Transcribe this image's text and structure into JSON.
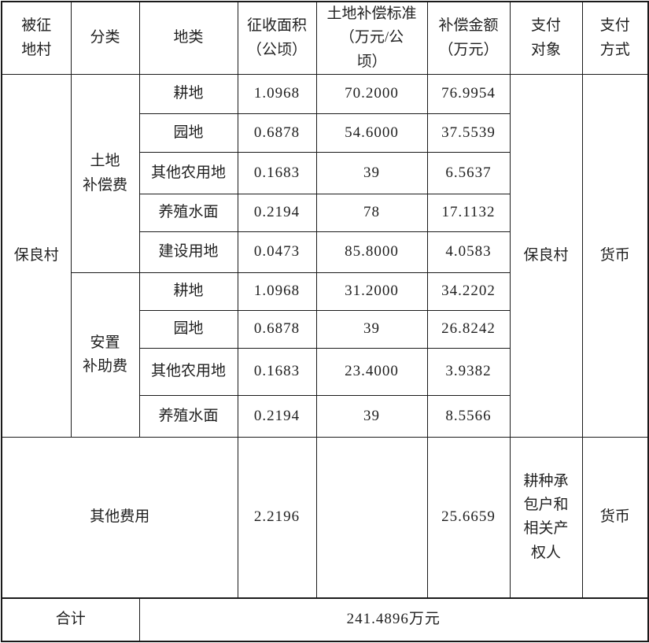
{
  "header": {
    "village": "被征\n地村",
    "category": "分类",
    "land_type": "地类",
    "area": "征收面积\n（公顷）",
    "standard": "土地补偿标准\n（万元/公\n顷）",
    "amount": "补偿金额\n（万元）",
    "payee": "支付\n对象",
    "method": "支付\n方式"
  },
  "village": "保良村",
  "categories": {
    "land_compensation": "土地\n补偿费",
    "resettlement_subsidy": "安置\n补助费"
  },
  "payee_village": "保良村",
  "method_currency": "货币",
  "rows": [
    {
      "land": "耕地",
      "area": "1.0968",
      "standard": "70.2000",
      "amount": "76.9954"
    },
    {
      "land": "园地",
      "area": "0.6878",
      "standard": "54.6000",
      "amount": "37.5539"
    },
    {
      "land": "其他农用地",
      "area": "0.1683",
      "standard": "39",
      "amount": "6.5637"
    },
    {
      "land": "养殖水面",
      "area": "0.2194",
      "standard": "78",
      "amount": "17.1132"
    },
    {
      "land": "建设用地",
      "area": "0.0473",
      "standard": "85.8000",
      "amount": "4.0583"
    },
    {
      "land": "耕地",
      "area": "1.0968",
      "standard": "31.2000",
      "amount": "34.2202"
    },
    {
      "land": "园地",
      "area": "0.6878",
      "standard": "39",
      "amount": "26.8242"
    },
    {
      "land": "其他农用地",
      "area": "0.1683",
      "standard": "23.4000",
      "amount": "3.9382"
    },
    {
      "land": "养殖水面",
      "area": "0.2194",
      "standard": "39",
      "amount": "8.5566"
    }
  ],
  "other_fees": {
    "label": "其他费用",
    "area": "2.2196",
    "standard": "",
    "amount": "25.6659",
    "payee": "耕种承\n包户和\n相关产\n权人",
    "method": "货币"
  },
  "total": {
    "label": "合计",
    "value": "241.4896万元"
  }
}
